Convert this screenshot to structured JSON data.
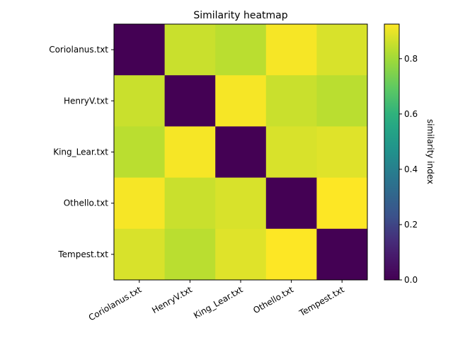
{
  "chart_data": {
    "type": "heatmap",
    "title": "Similarity heatmap",
    "xlabel": "",
    "ylabel": "",
    "x_categories": [
      "Coriolanus.txt",
      "HenryV.txt",
      "King_Lear.txt",
      "Othello.txt",
      "Tempest.txt"
    ],
    "y_categories": [
      "Coriolanus.txt",
      "HenryV.txt",
      "King_Lear.txt",
      "Othello.txt",
      "Tempest.txt"
    ],
    "values": [
      [
        0.0,
        0.855,
        0.835,
        0.915,
        0.875
      ],
      [
        0.855,
        0.0,
        0.915,
        0.855,
        0.835
      ],
      [
        0.835,
        0.915,
        0.0,
        0.875,
        0.885
      ],
      [
        0.915,
        0.855,
        0.875,
        0.0,
        0.925
      ],
      [
        0.875,
        0.835,
        0.885,
        0.925,
        0.0
      ]
    ],
    "colormap": "viridis",
    "vmin": 0.0,
    "vmax": 0.925,
    "colorbar": {
      "label": "similarity index",
      "ticks": [
        0.0,
        0.2,
        0.4,
        0.6,
        0.8
      ],
      "tick_labels": [
        "0.0",
        "0.2",
        "0.4",
        "0.6",
        "0.8"
      ]
    },
    "grid": false
  }
}
